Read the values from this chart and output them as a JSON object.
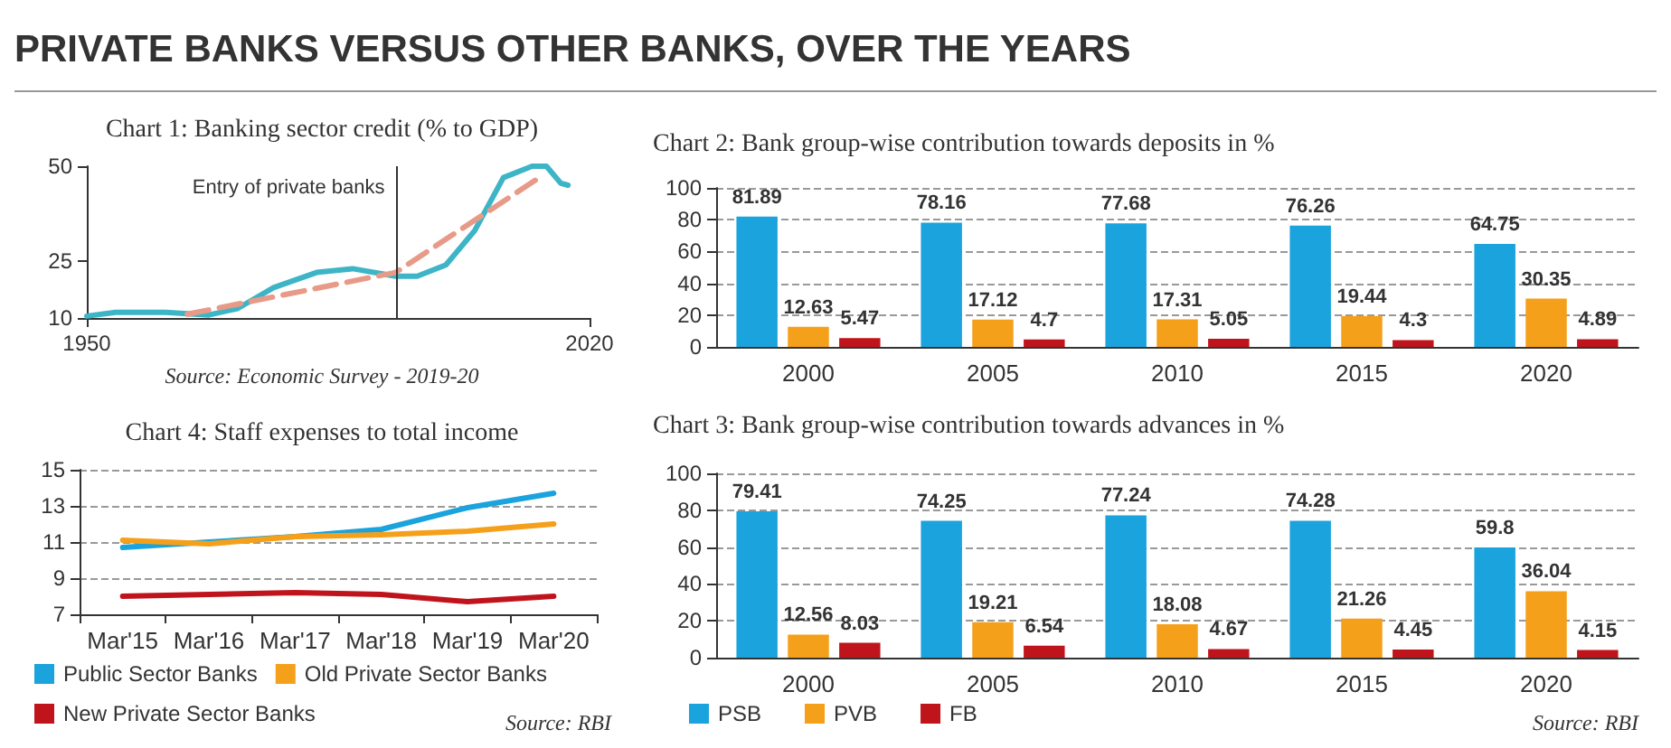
{
  "chart_data": [
    {
      "type": "other",
      "title": "PRIVATE BANKS VERSUS OTHER BANKS, OVER THE YEARS"
    },
    {
      "type": "line",
      "title": "Chart 1: Banking sector credit (% to GDP)",
      "xlim": [
        1950,
        2020
      ],
      "xticks": [
        1950,
        2020
      ],
      "ylim": [
        10,
        50
      ],
      "yticks": [
        10,
        25,
        50
      ],
      "marker": "none",
      "series": [
        {
          "color": "#3db5c6",
          "line_style": "solid",
          "x": [
            1950,
            1954,
            1961,
            1967,
            1971,
            1976,
            1982,
            1987,
            1993,
            1996,
            2000,
            2004,
            2008,
            2012,
            2014,
            2016,
            2017
          ],
          "values": [
            10.5,
            11.5,
            11.5,
            10.8,
            12.5,
            18,
            22,
            23,
            21,
            21,
            24,
            33,
            47,
            50,
            50,
            45.5,
            45
          ]
        },
        {
          "color": "#e89a88",
          "line_style": "dashed",
          "x": [
            1964,
            1993,
            2013
          ],
          "values": [
            11,
            22,
            47
          ]
        }
      ],
      "ref_lines": [
        {
          "axis": "x",
          "value": 1993,
          "label": "Entry of private banks"
        }
      ],
      "annotations": [
        "Source: Economic Survey - 2019-20"
      ]
    },
    {
      "type": "bar",
      "title": "Chart 2: Bank group-wise contribution towards deposits in %",
      "categories": [
        "2000",
        "2005",
        "2010",
        "2015",
        "2020"
      ],
      "ylim": [
        0,
        100
      ],
      "yticks": [
        0,
        20,
        40,
        60,
        80,
        100
      ],
      "grid": "y",
      "data_labels": true,
      "series": [
        {
          "color": "#1aa3dc",
          "values": [
            81.89,
            78.16,
            77.68,
            76.26,
            64.75
          ]
        },
        {
          "color": "#f5a01a",
          "values": [
            12.63,
            17.12,
            17.31,
            19.44,
            30.35
          ]
        },
        {
          "color": "#c0141c",
          "values": [
            5.47,
            4.7,
            5.05,
            4.3,
            4.89
          ]
        }
      ]
    },
    {
      "type": "line",
      "title": "Chart 4: Staff expenses to total income",
      "categories": [
        "Mar'15",
        "Mar'16",
        "Mar'17",
        "Mar'18",
        "Mar'19",
        "Mar'20"
      ],
      "ylim": [
        7,
        15
      ],
      "yticks": [
        7,
        9,
        11,
        13,
        15
      ],
      "grid": "y",
      "legend": "bottom",
      "marker": "none",
      "series": [
        {
          "name": "Public Sector Banks",
          "color": "#1aa3dc",
          "values": [
            10.7,
            11.0,
            11.3,
            11.7,
            12.9,
            13.7
          ]
        },
        {
          "name": "Old Private Sector Banks",
          "color": "#f5a01a",
          "values": [
            11.1,
            10.9,
            11.3,
            11.4,
            11.6,
            12.0
          ]
        },
        {
          "name": "New Private Sector Banks",
          "color": "#c0141c",
          "values": [
            8.0,
            8.1,
            8.2,
            8.1,
            7.7,
            8.0
          ]
        }
      ],
      "annotations": [
        "Source: RBI"
      ]
    },
    {
      "type": "bar",
      "title": "Chart 3: Bank group-wise contribution towards advances in %",
      "categories": [
        "2000",
        "2005",
        "2010",
        "2015",
        "2020"
      ],
      "ylim": [
        0,
        100
      ],
      "yticks": [
        0,
        20,
        40,
        60,
        80,
        100
      ],
      "grid": "y",
      "data_labels": true,
      "legend": "bottom left",
      "series": [
        {
          "name": "PSB",
          "color": "#1aa3dc",
          "values": [
            79.41,
            74.25,
            77.24,
            74.28,
            59.8
          ]
        },
        {
          "name": "PVB",
          "color": "#f5a01a",
          "values": [
            12.56,
            19.21,
            18.08,
            21.26,
            36.04
          ]
        },
        {
          "name": "FB",
          "color": "#c0141c",
          "values": [
            8.03,
            6.54,
            4.67,
            4.45,
            4.15
          ]
        }
      ],
      "annotations": [
        "Source: RBI"
      ]
    }
  ]
}
